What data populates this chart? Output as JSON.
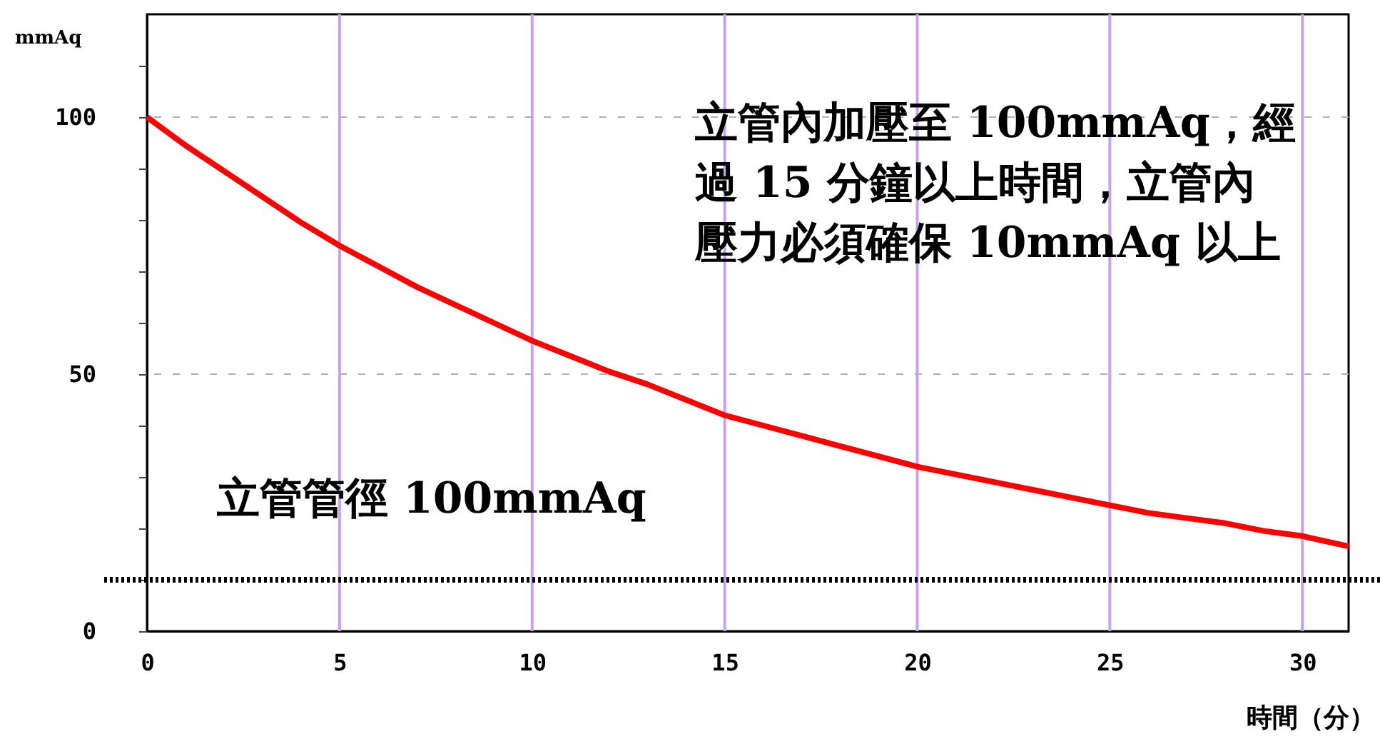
{
  "chart_data": {
    "type": "line",
    "xlabel": "時間（分）",
    "ylabel": "mmAq",
    "x": [
      0,
      1,
      2,
      3,
      4,
      5,
      6,
      7,
      8,
      9,
      10,
      11,
      12,
      13,
      14,
      15,
      16,
      17,
      18,
      19,
      20,
      21,
      22,
      23,
      24,
      25,
      26,
      27,
      28,
      29,
      30,
      31.2
    ],
    "series": [
      {
        "color": "#ff0000",
        "values": [
          100,
          94.5,
          89.5,
          84.5,
          79.5,
          75,
          71,
          67,
          63.5,
          60,
          56.5,
          53.5,
          50.5,
          48,
          45,
          42,
          40,
          38,
          36,
          34,
          32,
          30.5,
          29,
          27.5,
          26,
          24.5,
          23,
          22,
          21,
          19.5,
          18.5,
          16.5
        ]
      }
    ],
    "xlim": [
      0,
      31.2
    ],
    "xticks": [
      0,
      5,
      10,
      15,
      20,
      25,
      30
    ],
    "ylim": [
      0,
      120
    ],
    "yticks": [
      0,
      {
        "value": 10,
        "label": null
      },
      {
        "value": 20,
        "label": null
      },
      {
        "value": 30,
        "label": null
      },
      {
        "value": 40,
        "label": null
      },
      50,
      {
        "value": 60,
        "label": null
      },
      {
        "value": 70,
        "label": null
      },
      {
        "value": 80,
        "label": null
      },
      {
        "value": 90,
        "label": null
      },
      100,
      {
        "value": 110,
        "label": null
      }
    ],
    "grid": true,
    "marker": "none",
    "line_style": "solid",
    "ref_lines": [
      {
        "axis": "y",
        "value": 10,
        "color": "#000000",
        "line_style": "dotted"
      }
    ],
    "annotations": [
      "立管內加壓至 100mmAq，經過 15 分鐘以上時間，立管內壓力必須確保 10mmAq 以上",
      "立管管徑 100mmAq"
    ]
  }
}
